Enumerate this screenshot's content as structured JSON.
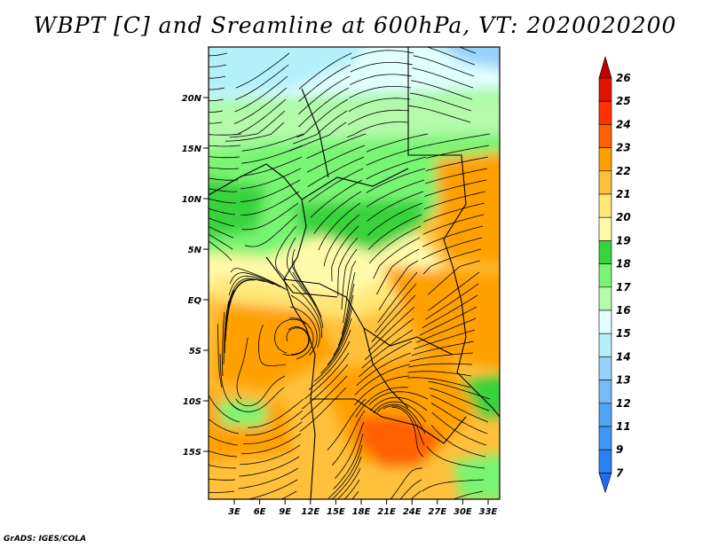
{
  "title": "WBPT [C] and Sreamline at 600hPa, VT: 2020020200",
  "credit": "GrADS: IGES/COLA",
  "lat_labels": [
    "20N",
    "15N",
    "10N",
    "5N",
    "EQ",
    "5S",
    "10S",
    "15S"
  ],
  "lon_labels": [
    "3E",
    "6E",
    "9E",
    "12E",
    "15E",
    "18E",
    "21E",
    "24E",
    "27E",
    "30E",
    "33E"
  ],
  "colorbar": {
    "labels": [
      "7",
      "9",
      "11",
      "12",
      "13",
      "14",
      "15",
      "16",
      "17",
      "18",
      "19",
      "20",
      "21",
      "22",
      "23",
      "24",
      "25",
      "26"
    ],
    "colors": [
      "#1e6eeb",
      "#2882f0",
      "#3c96f5",
      "#50a5f5",
      "#78b9fa",
      "#96d2fa",
      "#b4f0fa",
      "#e1ffff",
      "#b4faaa",
      "#78f573",
      "#37d23c",
      "#fffaaa",
      "#ffe878",
      "#ffc03c",
      "#ffa000",
      "#ff6000",
      "#ff3200",
      "#e11400",
      "#c00000"
    ]
  }
}
